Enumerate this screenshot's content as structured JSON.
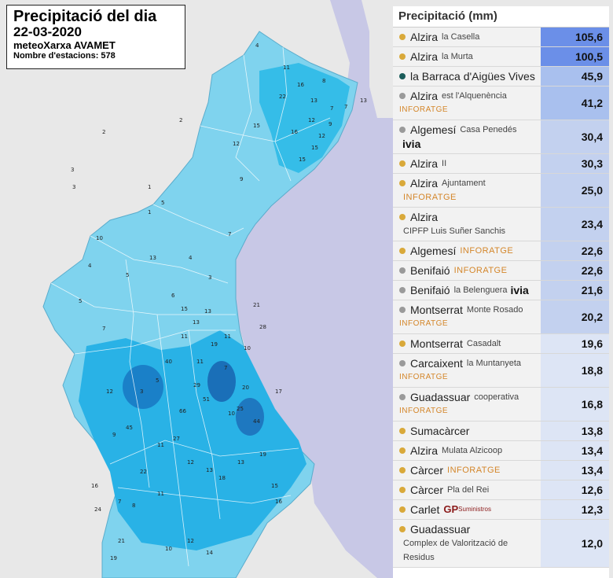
{
  "map": {
    "title": "Precipitació del dia",
    "date": "22-03-2020",
    "source": "meteoXarxa AVAMET",
    "stations": "Nombre d'estacions: 578"
  },
  "map_labels": [
    "2",
    "2",
    "3",
    "3",
    "1",
    "1",
    "4",
    "11",
    "16",
    "8",
    "13",
    "7",
    "12",
    "7",
    "13",
    "22",
    "16",
    "12",
    "9",
    "15",
    "15",
    "15",
    "12",
    "9",
    "5",
    "13",
    "4",
    "7",
    "3",
    "6",
    "5",
    "10",
    "4",
    "5",
    "7",
    "3",
    "5",
    "12",
    "9",
    "45",
    "40",
    "11",
    "7",
    "20",
    "25",
    "10",
    "44",
    "17",
    "51",
    "29",
    "66",
    "27",
    "12",
    "13",
    "18",
    "13",
    "19",
    "15",
    "16",
    "11",
    "10",
    "12",
    "14",
    "8",
    "21",
    "19",
    "24",
    "16",
    "7",
    "22",
    "11",
    "11",
    "13",
    "19",
    "11",
    "13",
    "15",
    "21",
    "28",
    "10"
  ],
  "table": {
    "header": "Precipitació (mm)",
    "colors": {
      "level1": "#6b8fe8",
      "level2": "#a9c0ee",
      "level3": "#c3d1ef",
      "level4": "#dde5f5",
      "dot_yellow": "#d9a93a",
      "dot_gray": "#9a9a9a",
      "dot_teal": "#1a5c5a"
    },
    "rows": [
      {
        "name": "Alzira",
        "sub": "la Casella",
        "value": "105,6",
        "dot": "dot_yellow",
        "level": "level1"
      },
      {
        "name": "Alzira",
        "sub": "la Murta",
        "value": "100,5",
        "dot": "dot_yellow",
        "level": "level1"
      },
      {
        "name": "la Barraca d'Aigües Vives",
        "value": "45,9",
        "dot": "dot_teal",
        "level": "level2"
      },
      {
        "name": "Alzira",
        "sub": "est l'Alquenència",
        "tag2": "INFORATGE",
        "value": "41,2",
        "dot": "dot_gray",
        "level": "level2"
      },
      {
        "name": "Algemesí",
        "sub": "Casa Penedés",
        "ivia": "ivia",
        "value": "30,4",
        "dot": "dot_gray",
        "level": "level3"
      },
      {
        "name": "Alzira",
        "sub": "II",
        "value": "30,3",
        "dot": "dot_yellow",
        "level": "level3"
      },
      {
        "name": "Alzira",
        "sub": "Ajuntament",
        "tag": "INFORATGE",
        "value": "25,0",
        "dot": "dot_yellow",
        "level": "level3"
      },
      {
        "name": "Alzira",
        "sub": "CIPFP Luis Suñer Sanchis",
        "value": "23,4",
        "dot": "dot_yellow",
        "level": "level3"
      },
      {
        "name": "Algemesí",
        "tag": "INFORATGE",
        "value": "22,6",
        "dot": "dot_yellow",
        "level": "level3"
      },
      {
        "name": "Benifaió",
        "tag": "INFORATGE",
        "value": "22,6",
        "dot": "dot_gray",
        "level": "level3"
      },
      {
        "name": "Benifaió",
        "sub": "la Belenguera",
        "ivia": "ivia",
        "value": "21,6",
        "dot": "dot_gray",
        "level": "level3"
      },
      {
        "name": "Montserrat",
        "sub": "Monte Rosado",
        "tag2": "INFORATGE",
        "value": "20,2",
        "dot": "dot_gray",
        "level": "level3"
      },
      {
        "name": "Montserrat",
        "sub": "Casadalt",
        "value": "19,6",
        "dot": "dot_yellow",
        "level": "level4"
      },
      {
        "name": "Carcaixent",
        "sub": "la Muntanyeta",
        "tag2": "INFORATGE",
        "value": "18,8",
        "dot": "dot_gray",
        "level": "level4"
      },
      {
        "name": "Guadassuar",
        "sub": "cooperativa",
        "tag2": "INFORATGE",
        "value": "16,8",
        "dot": "dot_gray",
        "level": "level4"
      },
      {
        "name": "Sumacàrcer",
        "value": "13,8",
        "dot": "dot_yellow",
        "level": "level4"
      },
      {
        "name": "Alzira",
        "sub": "Mulata Alzicoop",
        "value": "13,4",
        "dot": "dot_yellow",
        "level": "level4"
      },
      {
        "name": "Càrcer",
        "tag": "INFORATGE",
        "value": "13,4",
        "dot": "dot_yellow",
        "level": "level4"
      },
      {
        "name": "Càrcer",
        "sub": "Pla del Rei",
        "value": "12,6",
        "dot": "dot_yellow",
        "level": "level4"
      },
      {
        "name": "Carlet",
        "gp": "GP",
        "gpsub": "Suministros",
        "value": "12,3",
        "dot": "dot_yellow",
        "level": "level4"
      },
      {
        "name": "Guadassuar",
        "sub": "Complex de Valorització de Residus",
        "value": "12,0",
        "dot": "dot_yellow",
        "level": "level4"
      }
    ]
  }
}
